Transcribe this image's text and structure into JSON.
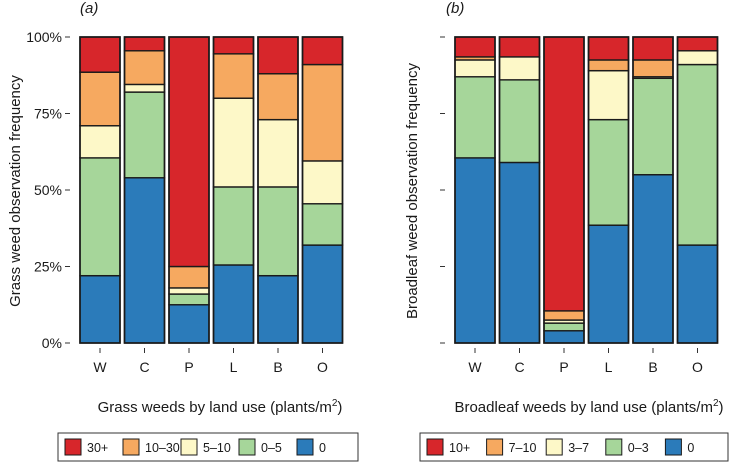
{
  "chart_data": [
    {
      "type": "bar",
      "stacked": true,
      "panel_label": "(a)",
      "categories": [
        "W",
        "C",
        "P",
        "L",
        "B",
        "O"
      ],
      "xlabel": "Grass weeds by land use (plants/m",
      "xlabel_sup": "2",
      "xlabel_end": ")",
      "ylabel": "Grass weed observation frequency",
      "ylim": [
        0,
        100
      ],
      "yticks": [
        "0%",
        "25%",
        "50%",
        "75%",
        "100%"
      ],
      "legend_position": "bottom",
      "series": [
        {
          "name": "0",
          "color": "#2b7bba",
          "values": [
            22,
            54,
            12.5,
            25.5,
            22,
            32
          ]
        },
        {
          "name": "0–5",
          "color": "#a6d69a",
          "values": [
            38.5,
            28,
            3.5,
            25.5,
            29,
            13.5
          ]
        },
        {
          "name": "5–10",
          "color": "#fdf8c8",
          "values": [
            10.5,
            2.5,
            2,
            29,
            22,
            14
          ]
        },
        {
          "name": "10–30",
          "color": "#f6a960",
          "values": [
            17.5,
            11,
            7,
            14.5,
            15,
            31.5
          ]
        },
        {
          "name": "30+",
          "color": "#d7262b",
          "values": [
            11.5,
            4.5,
            75,
            5.5,
            12,
            9
          ]
        }
      ]
    },
    {
      "type": "bar",
      "stacked": true,
      "panel_label": "(b)",
      "categories": [
        "W",
        "C",
        "P",
        "L",
        "B",
        "O"
      ],
      "xlabel": "Broadleaf weeds by land use (plants/m",
      "xlabel_sup": "2",
      "xlabel_end": ")",
      "ylabel": "Broadleaf weed observation frequency",
      "ylim": [
        0,
        100
      ],
      "legend_position": "bottom",
      "series": [
        {
          "name": "0",
          "color": "#2b7bba",
          "values": [
            60.5,
            59,
            4,
            38.5,
            55,
            32
          ]
        },
        {
          "name": "0–3",
          "color": "#a6d69a",
          "values": [
            26.5,
            27,
            2.5,
            34.5,
            31.5,
            59
          ]
        },
        {
          "name": "3–7",
          "color": "#fdf8c8",
          "values": [
            5.5,
            7.5,
            1,
            16,
            0.5,
            4.5
          ]
        },
        {
          "name": "7–10",
          "color": "#f6a960",
          "values": [
            1,
            0,
            3,
            3.5,
            5.5,
            0
          ]
        },
        {
          "name": "10+",
          "color": "#d7262b",
          "values": [
            6.5,
            6.5,
            89.5,
            7.5,
            7.5,
            4.5
          ]
        }
      ]
    }
  ]
}
